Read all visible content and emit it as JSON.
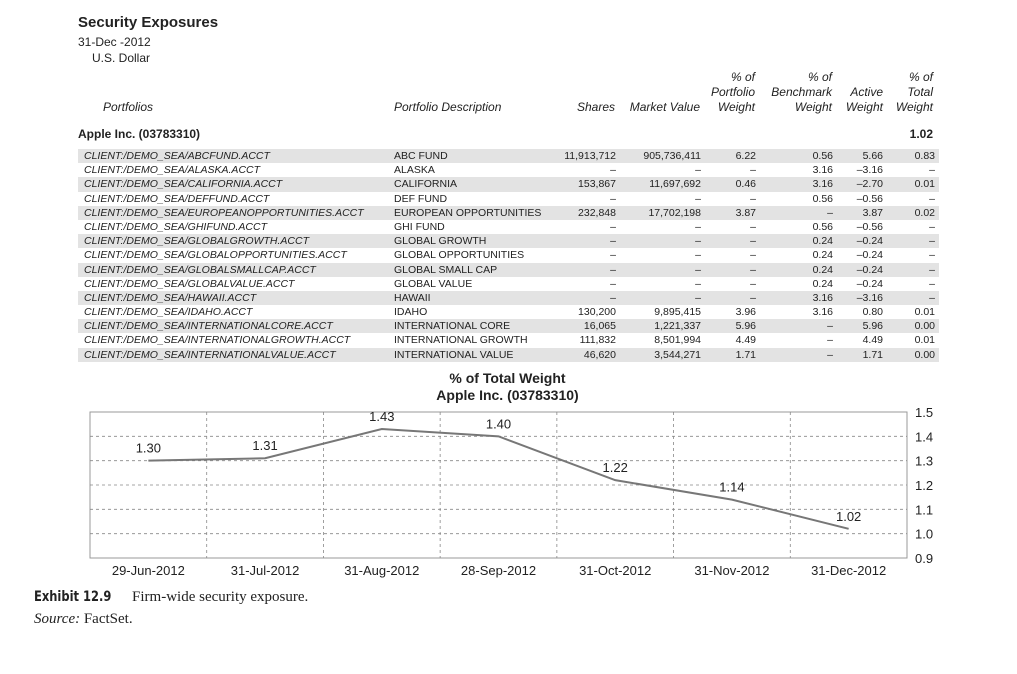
{
  "header": {
    "title": "Security Exposures",
    "date": "31-Dec -2012",
    "currency": "U.S. Dollar"
  },
  "columns": {
    "portfolios": "Portfolios",
    "description": "Portfolio Description",
    "shares": "Shares",
    "market_value": "Market Value",
    "portfolio_weight": [
      "% of",
      "Portfolio",
      "Weight"
    ],
    "benchmark_weight": [
      "% of",
      "Benchmark",
      "Weight"
    ],
    "active_weight": [
      "Active",
      "Weight"
    ],
    "total_weight": [
      "% of",
      "Total",
      "Weight"
    ]
  },
  "group": {
    "name": "Apple Inc. (03783310)",
    "total": "1.02"
  },
  "rows": [
    {
      "acct": "CLIENT:/DEMO_SEA/ABCFUND.ACCT",
      "desc": "ABC FUND",
      "shares": "11,913,712",
      "mv": "905,736,411",
      "pw": "6.22",
      "bw": "0.56",
      "aw": "5.66",
      "tw": "0.83"
    },
    {
      "acct": "CLIENT:/DEMO_SEA/ALASKA.ACCT",
      "desc": "ALASKA",
      "shares": "–",
      "mv": "–",
      "pw": "–",
      "bw": "3.16",
      "aw": "–3.16",
      "tw": "–"
    },
    {
      "acct": "CLIENT:/DEMO_SEA/CALIFORNIA.ACCT",
      "desc": "CALIFORNIA",
      "shares": "153,867",
      "mv": "11,697,692",
      "pw": "0.46",
      "bw": "3.16",
      "aw": "–2.70",
      "tw": "0.01"
    },
    {
      "acct": "CLIENT:/DEMO_SEA/DEFFUND.ACCT",
      "desc": "DEF FUND",
      "shares": "–",
      "mv": "–",
      "pw": "–",
      "bw": "0.56",
      "aw": "–0.56",
      "tw": "–"
    },
    {
      "acct": "CLIENT:/DEMO_SEA/EUROPEANOPPORTUNITIES.ACCT",
      "desc": "EUROPEAN OPPORTUNITIES",
      "shares": "232,848",
      "mv": "17,702,198",
      "pw": "3.87",
      "bw": "–",
      "aw": "3.87",
      "tw": "0.02"
    },
    {
      "acct": "CLIENT:/DEMO_SEA/GHIFUND.ACCT",
      "desc": "GHI FUND",
      "shares": "–",
      "mv": "–",
      "pw": "–",
      "bw": "0.56",
      "aw": "–0.56",
      "tw": "–"
    },
    {
      "acct": "CLIENT:/DEMO_SEA/GLOBALGROWTH.ACCT",
      "desc": "GLOBAL GROWTH",
      "shares": "–",
      "mv": "–",
      "pw": "–",
      "bw": "0.24",
      "aw": "–0.24",
      "tw": "–"
    },
    {
      "acct": "CLIENT:/DEMO_SEA/GLOBALOPPORTUNITIES.ACCT",
      "desc": "GLOBAL OPPORTUNITIES",
      "shares": "–",
      "mv": "–",
      "pw": "–",
      "bw": "0.24",
      "aw": "–0.24",
      "tw": "–"
    },
    {
      "acct": "CLIENT:/DEMO_SEA/GLOBALSMALLCAP.ACCT",
      "desc": "GLOBAL SMALL CAP",
      "shares": "–",
      "mv": "–",
      "pw": "–",
      "bw": "0.24",
      "aw": "–0.24",
      "tw": "–"
    },
    {
      "acct": "CLIENT:/DEMO_SEA/GLOBALVALUE.ACCT",
      "desc": "GLOBAL VALUE",
      "shares": "–",
      "mv": "–",
      "pw": "–",
      "bw": "0.24",
      "aw": "–0.24",
      "tw": "–"
    },
    {
      "acct": "CLIENT:/DEMO_SEA/HAWAII.ACCT",
      "desc": "HAWAII",
      "shares": "–",
      "mv": "–",
      "pw": "–",
      "bw": "3.16",
      "aw": "–3.16",
      "tw": "–"
    },
    {
      "acct": "CLIENT:/DEMO_SEA/IDAHO.ACCT",
      "desc": "IDAHO",
      "shares": "130,200",
      "mv": "9,895,415",
      "pw": "3.96",
      "bw": "3.16",
      "aw": "0.80",
      "tw": "0.01"
    },
    {
      "acct": "CLIENT:/DEMO_SEA/INTERNATIONALCORE.ACCT",
      "desc": "INTERNATIONAL CORE",
      "shares": "16,065",
      "mv": "1,221,337",
      "pw": "5.96",
      "bw": "–",
      "aw": "5.96",
      "tw": "0.00"
    },
    {
      "acct": "CLIENT:/DEMO_SEA/INTERNATIONALGROWTH.ACCT",
      "desc": "INTERNATIONAL GROWTH",
      "shares": "111,832",
      "mv": "8,501,994",
      "pw": "4.49",
      "bw": "–",
      "aw": "4.49",
      "tw": "0.01"
    },
    {
      "acct": "CLIENT:/DEMO_SEA/INTERNATIONALVALUE.ACCT",
      "desc": "INTERNATIONAL VALUE",
      "shares": "46,620",
      "mv": "3,544,271",
      "pw": "1.71",
      "bw": "–",
      "aw": "1.71",
      "tw": "0.00"
    }
  ],
  "chart_data": {
    "type": "line",
    "title": "% of Total Weight",
    "subtitle": "Apple Inc. (03783310)",
    "categories": [
      "29-Jun-2012",
      "31-Jul-2012",
      "31-Aug-2012",
      "28-Sep-2012",
      "31-Oct-2012",
      "31-Nov-2012",
      "31-Dec-2012"
    ],
    "values": [
      1.3,
      1.31,
      1.43,
      1.4,
      1.22,
      1.14,
      1.02
    ],
    "labels": [
      "1.30",
      "1.31",
      "1.43",
      "1.40",
      "1.22",
      "1.14",
      "1.02"
    ],
    "yticks": [
      "1.5",
      "1.4",
      "1.3",
      "1.2",
      "1.1",
      "1.0",
      "0.9"
    ],
    "ylim": [
      0.9,
      1.5
    ],
    "y_axis_side": "right",
    "grid": true,
    "line_color": "#777777",
    "grid_color": "#888888"
  },
  "caption": {
    "exhibit": "Exhibit 12.9",
    "text": "Firm-wide security exposure.",
    "source_label": "Source:",
    "source": "FactSet."
  }
}
